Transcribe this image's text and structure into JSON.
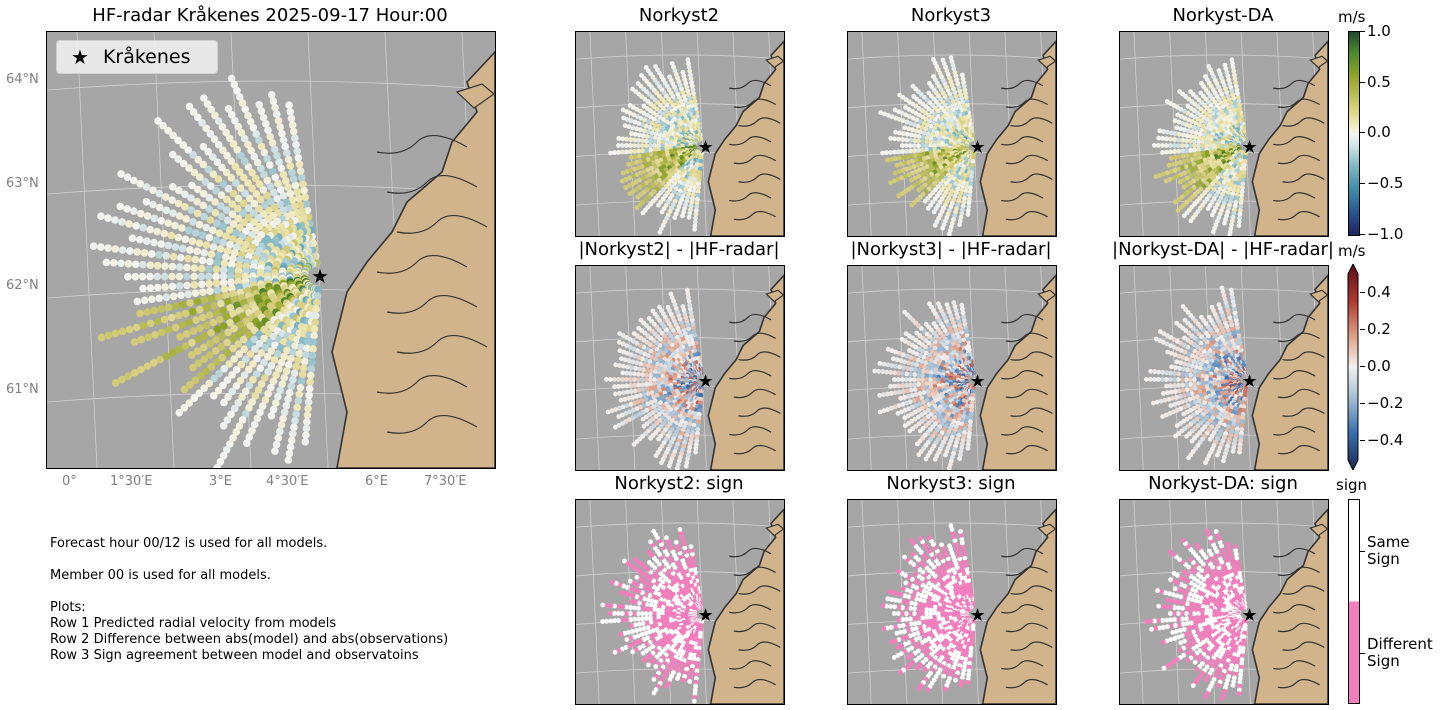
{
  "main_title": "HF-radar  Kråkenes  2025-09-17 Hour:00",
  "legend_label": "Kråkenes",
  "lat_labels": [
    "64°N",
    "63°N",
    "62°N",
    "61°N"
  ],
  "lon_labels": [
    "0°",
    "1°30′E",
    "3°E",
    "4°30′E",
    "6°E",
    "7°30′E"
  ],
  "row1_titles": [
    "Norkyst2",
    "Norkyst3",
    "Norkyst-DA"
  ],
  "row2_titles": [
    "|Norkyst2| - |HF-radar|",
    "|Norkyst3| - |HF-radar|",
    "|Norkyst-DA| - |HF-radar|"
  ],
  "row3_titles": [
    "Norkyst2: sign",
    "Norkyst3: sign",
    "Norkyst-DA: sign"
  ],
  "colorbar1": {
    "unit": "m/s",
    "ticks": [
      "1.0",
      "0.5",
      "0.0",
      "−0.5",
      "−1.0"
    ]
  },
  "colorbar2": {
    "unit": "m/s",
    "ticks": [
      "0.4",
      "0.2",
      "0.0",
      "−0.2",
      "−0.4"
    ]
  },
  "colorbar3": {
    "unit": "sign",
    "ticks": [
      "Same\nSign",
      "Different\nSign"
    ]
  },
  "notes": "Forecast hour 00/12 is used for all models.\n\nMember 00 is used for all models.\n\nPlots:\nRow 1 Predicted radial velocity from models\nRow 2 Difference between abs(model) and abs(observations)\nRow 3 Sign agreement between model and observatoins",
  "colors": {
    "ocean": "#a6a6a6",
    "land": "#d2b48c",
    "coast": "#333333",
    "same_sign": "#ffffff",
    "different_sign": "#f37ebd"
  }
}
